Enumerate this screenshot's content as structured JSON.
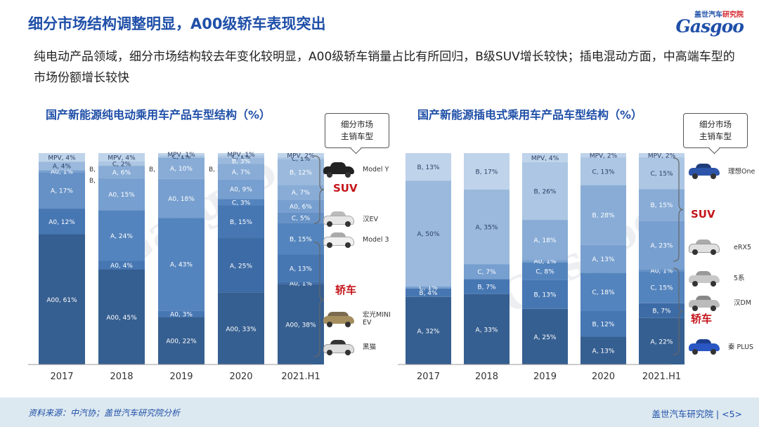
{
  "title": "细分市场结构调整明显，A00级轿车表现突出",
  "logo": {
    "brand_a": "盖世汽车",
    "brand_b": "研究院",
    "word": "Gasgoo"
  },
  "subtitle": "纯电动产品领域，细分市场结构较去年变化较明显，A00级轿车销量占比有所回归，B级SUV增长较快；插电混动方面，中高端车型的市场份额增长较快",
  "callout": {
    "line1": "细分市场",
    "line2": "主销车型"
  },
  "categories_label": {
    "suv": "SUV",
    "sedan": "轿车"
  },
  "models_left": [
    "Model Y",
    "汉EV",
    "Model 3",
    "宏光MINI EV",
    "黑猫"
  ],
  "models_right": [
    "理想One",
    "eRX5",
    "5系",
    "汉DM",
    "秦 PLUS"
  ],
  "footer": {
    "source": "资料来源：中汽协；盖世汽车研究院分析",
    "page": "盖世汽车研究院 | <5>"
  },
  "watermark": "Gasgoo",
  "colors": {
    "title": "#1f4fa8",
    "suv": "#c4161c"
  },
  "chart_data": [
    {
      "type": "bar",
      "stacked": true,
      "title": "国产新能源纯电动乘用车产品车型结构（%）",
      "categories": [
        "2017",
        "2018",
        "2019",
        "2020",
        "2021.H1"
      ],
      "bars": [
        {
          "category": "2017",
          "segments": [
            {
              "label": "A00, 61%",
              "value": 61
            },
            {
              "label": "A0, 12%",
              "value": 12
            },
            {
              "label": "A, 17%",
              "value": 17
            },
            {
              "label": "A0, 1%",
              "value": 1
            },
            {
              "label": "A, 4%",
              "value": 4
            },
            {
              "label": "MPV, 4%",
              "value": 4
            }
          ],
          "outside": [
            {
              "label": "B, 1%"
            },
            {
              "label": "B, 1%"
            }
          ]
        },
        {
          "category": "2018",
          "segments": [
            {
              "label": "A00, 45%",
              "value": 45
            },
            {
              "label": "A0, 4%",
              "value": 4
            },
            {
              "label": "A, 24%",
              "value": 24
            },
            {
              "label": "A0, 15%",
              "value": 15
            },
            {
              "label": "A, 6%",
              "value": 6
            },
            {
              "label": "C, 2%",
              "value": 2
            },
            {
              "label": "MPV, 4%",
              "value": 4
            }
          ],
          "outside": [
            {
              "label": "B, 1%"
            }
          ]
        },
        {
          "category": "2019",
          "segments": [
            {
              "label": "A00, 22%",
              "value": 22
            },
            {
              "label": "A0, 3%",
              "value": 3
            },
            {
              "label": "A, 43%",
              "value": 43
            },
            {
              "label": "A0, 18%",
              "value": 18
            },
            {
              "label": "A, 10%",
              "value": 10
            },
            {
              "label": "C, 1%",
              "value": 1
            },
            {
              "label": "MPV, 1%",
              "value": 1
            }
          ],
          "outside": [
            {
              "label": "B, 3%"
            }
          ]
        },
        {
          "category": "2020",
          "segments": [
            {
              "label": "A00, 33%",
              "value": 33
            },
            {
              "label": "A, 25%",
              "value": 25
            },
            {
              "label": "B, 15%",
              "value": 15
            },
            {
              "label": "C, 3%",
              "value": 3
            },
            {
              "label": "A0, 9%",
              "value": 9
            },
            {
              "label": "A, 7%",
              "value": 7
            },
            {
              "label": "B, 3%",
              "value": 3
            },
            {
              "label": "C, 1%",
              "value": 1
            },
            {
              "label": "MPV, 1%",
              "value": 1
            }
          ]
        },
        {
          "category": "2021.H1",
          "segments": [
            {
              "label": "A00, 38%",
              "value": 38
            },
            {
              "label": "A0, 1%",
              "value": 1
            },
            {
              "label": "A, 13%",
              "value": 13
            },
            {
              "label": "B, 15%",
              "value": 15
            },
            {
              "label": "C, 5%",
              "value": 5
            },
            {
              "label": "A0, 6%",
              "value": 6
            },
            {
              "label": "A, 7%",
              "value": 7
            },
            {
              "label": "B, 12%",
              "value": 12
            },
            {
              "label": "C, 1%",
              "value": 1
            },
            {
              "label": "MPV, 2%",
              "value": 2
            }
          ]
        }
      ]
    },
    {
      "type": "bar",
      "stacked": true,
      "title": "国产新能源插电式乘用车产品车型结构（%）",
      "categories": [
        "2017",
        "2018",
        "2019",
        "2020",
        "2021.H1"
      ],
      "bars": [
        {
          "category": "2017",
          "segments": [
            {
              "label": "A, 32%",
              "value": 32
            },
            {
              "label": "B, 4%",
              "value": 4
            },
            {
              "label": "C, 1%",
              "value": 1
            },
            {
              "label": "A, 50%",
              "value": 50
            },
            {
              "label": "B, 13%",
              "value": 13
            }
          ]
        },
        {
          "category": "2018",
          "segments": [
            {
              "label": "A, 33%",
              "value": 33
            },
            {
              "label": "B, 7%",
              "value": 7
            },
            {
              "label": "C, 7%",
              "value": 7
            },
            {
              "label": "A, 35%",
              "value": 35
            },
            {
              "label": "B, 17%",
              "value": 17
            }
          ]
        },
        {
          "category": "2019",
          "segments": [
            {
              "label": "A, 25%",
              "value": 25
            },
            {
              "label": "B, 13%",
              "value": 13
            },
            {
              "label": "C, 8%",
              "value": 8
            },
            {
              "label": "A0, 1%",
              "value": 1
            },
            {
              "label": "A, 18%",
              "value": 18
            },
            {
              "label": "B, 26%",
              "value": 26
            },
            {
              "label": "MPV, 4%",
              "value": 4
            }
          ]
        },
        {
          "category": "2020",
          "segments": [
            {
              "label": "A, 13%",
              "value": 13
            },
            {
              "label": "B, 12%",
              "value": 12
            },
            {
              "label": "C, 18%",
              "value": 18
            },
            {
              "label": "A, 13%",
              "value": 13
            },
            {
              "label": "B, 28%",
              "value": 28
            },
            {
              "label": "C, 13%",
              "value": 13
            },
            {
              "label": "MPV, 2%",
              "value": 2
            }
          ]
        },
        {
          "category": "2021.H1",
          "segments": [
            {
              "label": "A, 22%",
              "value": 22
            },
            {
              "label": "B, 7%",
              "value": 7
            },
            {
              "label": "C, 15%",
              "value": 15
            },
            {
              "label": "A0, 1%",
              "value": 1
            },
            {
              "label": "A, 23%",
              "value": 23
            },
            {
              "label": "B, 15%",
              "value": 15
            },
            {
              "label": "C, 15%",
              "value": 15
            },
            {
              "label": "MPV, 2%",
              "value": 2
            }
          ]
        }
      ]
    }
  ]
}
